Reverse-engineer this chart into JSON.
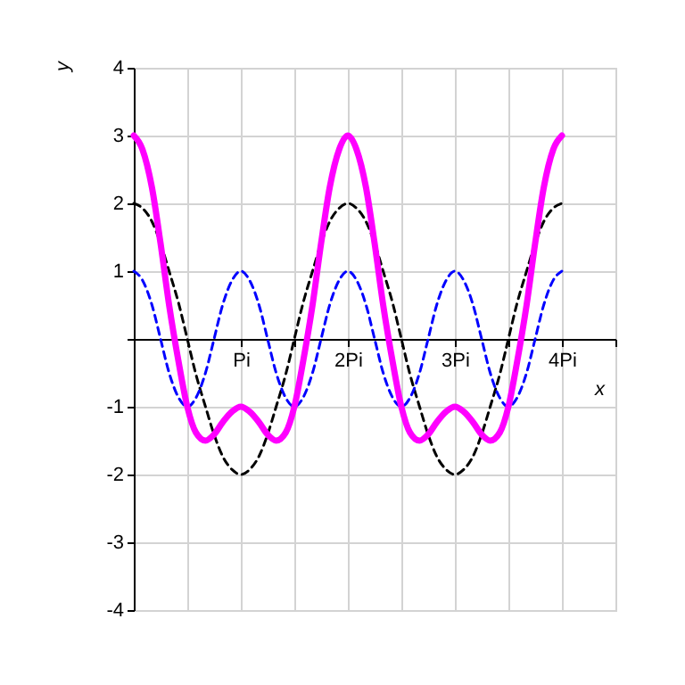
{
  "chart_data": {
    "type": "line",
    "xlabel": "x",
    "ylabel": "y",
    "xlim": [
      0,
      4.5
    ],
    "ylim": [
      -4,
      4
    ],
    "xticks": [
      {
        "value": 0.5,
        "label": null
      },
      {
        "value": 1,
        "label": "Pi"
      },
      {
        "value": 1.5,
        "label": null
      },
      {
        "value": 2,
        "label": "2Pi"
      },
      {
        "value": 2.5,
        "label": null
      },
      {
        "value": 3,
        "label": "3Pi"
      },
      {
        "value": 3.5,
        "label": null
      },
      {
        "value": 4,
        "label": "4Pi"
      },
      {
        "value": 4.5,
        "label": null
      }
    ],
    "yticks": [
      -4,
      -3,
      -2,
      -1,
      {
        "value": 0,
        "label": null
      },
      1,
      2,
      3,
      4
    ],
    "grid": true,
    "marker": "none",
    "x": [
      0,
      0.08,
      0.17,
      0.25,
      0.33,
      0.42,
      0.5,
      0.58,
      0.67,
      0.75,
      0.83,
      0.92,
      1,
      1.08,
      1.17,
      1.25,
      1.33,
      1.42,
      1.5,
      1.58,
      1.67,
      1.75,
      1.83,
      1.92,
      2,
      2.08,
      2.17,
      2.25,
      2.33,
      2.42,
      2.5,
      2.58,
      2.67,
      2.75,
      2.83,
      2.92,
      3,
      3.08,
      3.17,
      3.25,
      3.33,
      3.42,
      3.5,
      3.58,
      3.67,
      3.75,
      3.83,
      3.92,
      4
    ],
    "series": [
      {
        "color": "#000000",
        "line_style": "dashed",
        "values": [
          2,
          1.93,
          1.73,
          1.41,
          1,
          0.52,
          0,
          -0.52,
          -1,
          -1.41,
          -1.73,
          -1.93,
          -2,
          -1.93,
          -1.73,
          -1.41,
          -1,
          -0.52,
          0,
          0.52,
          1,
          1.41,
          1.73,
          1.93,
          2,
          1.93,
          1.73,
          1.41,
          1,
          0.52,
          0,
          -0.52,
          -1,
          -1.41,
          -1.73,
          -1.93,
          -2,
          -1.93,
          -1.73,
          -1.41,
          -1,
          -0.52,
          0,
          0.52,
          1,
          1.41,
          1.73,
          1.93,
          2
        ]
      },
      {
        "color": "#0000ff",
        "line_style": "dashed",
        "values": [
          1,
          0.87,
          0.5,
          0,
          -0.5,
          -0.87,
          -1,
          -0.87,
          -0.5,
          0,
          0.5,
          0.87,
          1,
          0.87,
          0.5,
          0,
          -0.5,
          -0.87,
          -1,
          -0.87,
          -0.5,
          0,
          0.5,
          0.87,
          1,
          0.87,
          0.5,
          0,
          -0.5,
          -0.87,
          -1,
          -0.87,
          -0.5,
          0,
          0.5,
          0.87,
          1,
          0.87,
          0.5,
          0,
          -0.5,
          -0.87,
          -1,
          -0.87,
          -0.5,
          0,
          0.5,
          0.87,
          1
        ]
      },
      {
        "color": "#ff00ff",
        "line_style": "solid",
        "values": [
          3,
          2.8,
          2.23,
          1.41,
          0.5,
          -0.35,
          -1,
          -1.38,
          -1.5,
          -1.41,
          -1.23,
          -1.07,
          -1,
          -1.07,
          -1.23,
          -1.41,
          -1.5,
          -1.38,
          -1,
          -0.35,
          0.5,
          1.41,
          2.23,
          2.8,
          3,
          2.8,
          2.23,
          1.41,
          0.5,
          -0.35,
          -1,
          -1.38,
          -1.5,
          -1.41,
          -1.23,
          -1.07,
          -1,
          -1.07,
          -1.23,
          -1.41,
          -1.5,
          -1.38,
          -1,
          -0.35,
          0.5,
          1.41,
          2.23,
          2.8,
          3
        ]
      }
    ]
  }
}
